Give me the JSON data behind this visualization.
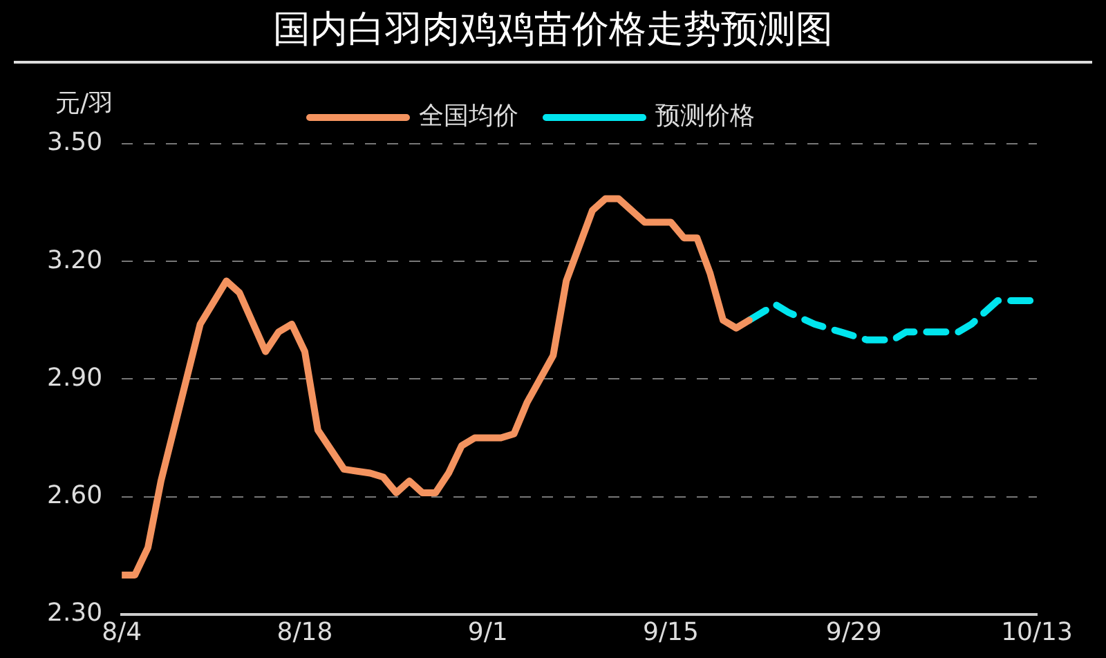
{
  "chart_data": {
    "type": "line",
    "title": "国内白羽肉鸡鸡苗价格走势预测图",
    "ylabel": "元/羽",
    "xlim": [
      "--08-04",
      "--10-13"
    ],
    "xticks": [
      {
        "value": "--08-04",
        "label": "8/4"
      },
      {
        "value": "--08-18",
        "label": "8/18"
      },
      {
        "value": "--09-01",
        "label": "9/1"
      },
      {
        "value": "--09-15",
        "label": "9/15"
      },
      {
        "value": "--09-29",
        "label": "9/29"
      },
      {
        "value": "--10-13",
        "label": "10/13"
      }
    ],
    "ylim": [
      2.3,
      3.5
    ],
    "yticks": [
      {
        "value": 2.3,
        "label": "2.30"
      },
      {
        "value": 2.6,
        "label": "2.60"
      },
      {
        "value": 2.9,
        "label": "2.90"
      },
      {
        "value": 3.2,
        "label": "3.20"
      },
      {
        "value": 3.5,
        "label": "3.50"
      }
    ],
    "grid": "y",
    "legend": "top",
    "marker": "none",
    "series": [
      {
        "name": "全国均价",
        "color": "#f4935f",
        "line_style": "solid",
        "x": [
          "--08-04",
          "--08-05",
          "--08-06",
          "--08-07",
          "--08-10",
          "--08-12",
          "--08-13",
          "--08-15",
          "--08-16",
          "--08-17",
          "--08-18",
          "--08-19",
          "--08-21",
          "--08-23",
          "--08-24",
          "--08-25",
          "--08-26",
          "--08-27",
          "--08-28",
          "--08-29",
          "--08-30",
          "--08-31",
          "--09-02",
          "--09-03",
          "--09-04",
          "--09-06",
          "--09-07",
          "--09-09",
          "--09-10",
          "--09-11",
          "--09-12",
          "--09-13",
          "--09-15",
          "--09-16",
          "--09-17",
          "--09-18",
          "--09-19",
          "--09-20",
          "--09-21"
        ],
        "values": [
          2.4,
          2.4,
          2.47,
          2.64,
          3.04,
          3.15,
          3.12,
          2.97,
          3.02,
          3.04,
          2.97,
          2.77,
          2.67,
          2.66,
          2.65,
          2.61,
          2.64,
          2.61,
          2.61,
          2.66,
          2.73,
          2.75,
          2.75,
          2.76,
          2.84,
          2.96,
          3.15,
          3.33,
          3.36,
          3.36,
          3.33,
          3.3,
          3.3,
          3.26,
          3.26,
          3.17,
          3.05,
          3.03,
          3.05
        ]
      },
      {
        "name": "预测价格",
        "color": "#00e5ee",
        "line_style": "dashed",
        "x": [
          "--09-21",
          "--09-23",
          "--09-24",
          "--09-26",
          "--09-27",
          "--09-28",
          "--09-30",
          "--10-02",
          "--10-03",
          "--10-07",
          "--10-08",
          "--10-10",
          "--10-13"
        ],
        "values": [
          3.05,
          3.09,
          3.07,
          3.04,
          3.03,
          3.02,
          3.0,
          3.0,
          3.02,
          3.02,
          3.04,
          3.1,
          3.1
        ]
      }
    ]
  }
}
